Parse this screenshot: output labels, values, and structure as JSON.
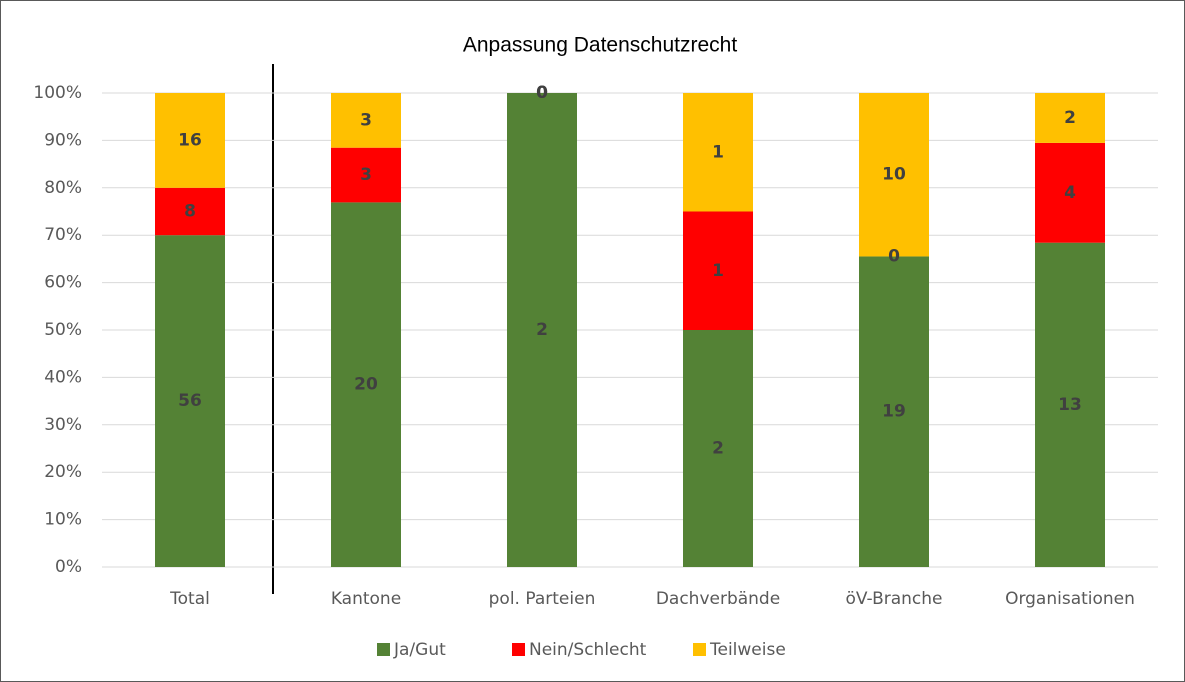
{
  "chart_data": {
    "type": "bar",
    "stacking": "percent",
    "title": "Anpassung Datenschutzrecht",
    "categories": [
      "Total",
      "Kantone",
      "pol. Parteien",
      "Dachverbände",
      "öV-Branche",
      "Organisationen"
    ],
    "series": [
      {
        "name": "Ja/Gut",
        "color": "#548235",
        "values": [
          56,
          20,
          2,
          2,
          19,
          13
        ]
      },
      {
        "name": "Nein/Schlecht",
        "color": "#ff0000",
        "values": [
          8,
          3,
          0,
          1,
          0,
          4
        ]
      },
      {
        "name": "Teilweise",
        "color": "#ffc000",
        "values": [
          16,
          3,
          0,
          1,
          10,
          2
        ]
      }
    ],
    "ylim": [
      0,
      100
    ],
    "yticks": [
      {
        "value": 0,
        "label": "0%"
      },
      {
        "value": 10,
        "label": "10%"
      },
      {
        "value": 20,
        "label": "20%"
      },
      {
        "value": 30,
        "label": "30%"
      },
      {
        "value": 40,
        "label": "40%"
      },
      {
        "value": 50,
        "label": "50%"
      },
      {
        "value": 60,
        "label": "60%"
      },
      {
        "value": 70,
        "label": "70%"
      },
      {
        "value": 80,
        "label": "80%"
      },
      {
        "value": 90,
        "label": "90%"
      },
      {
        "value": 100,
        "label": "100%"
      }
    ],
    "grid": true,
    "legend": "bottom"
  }
}
